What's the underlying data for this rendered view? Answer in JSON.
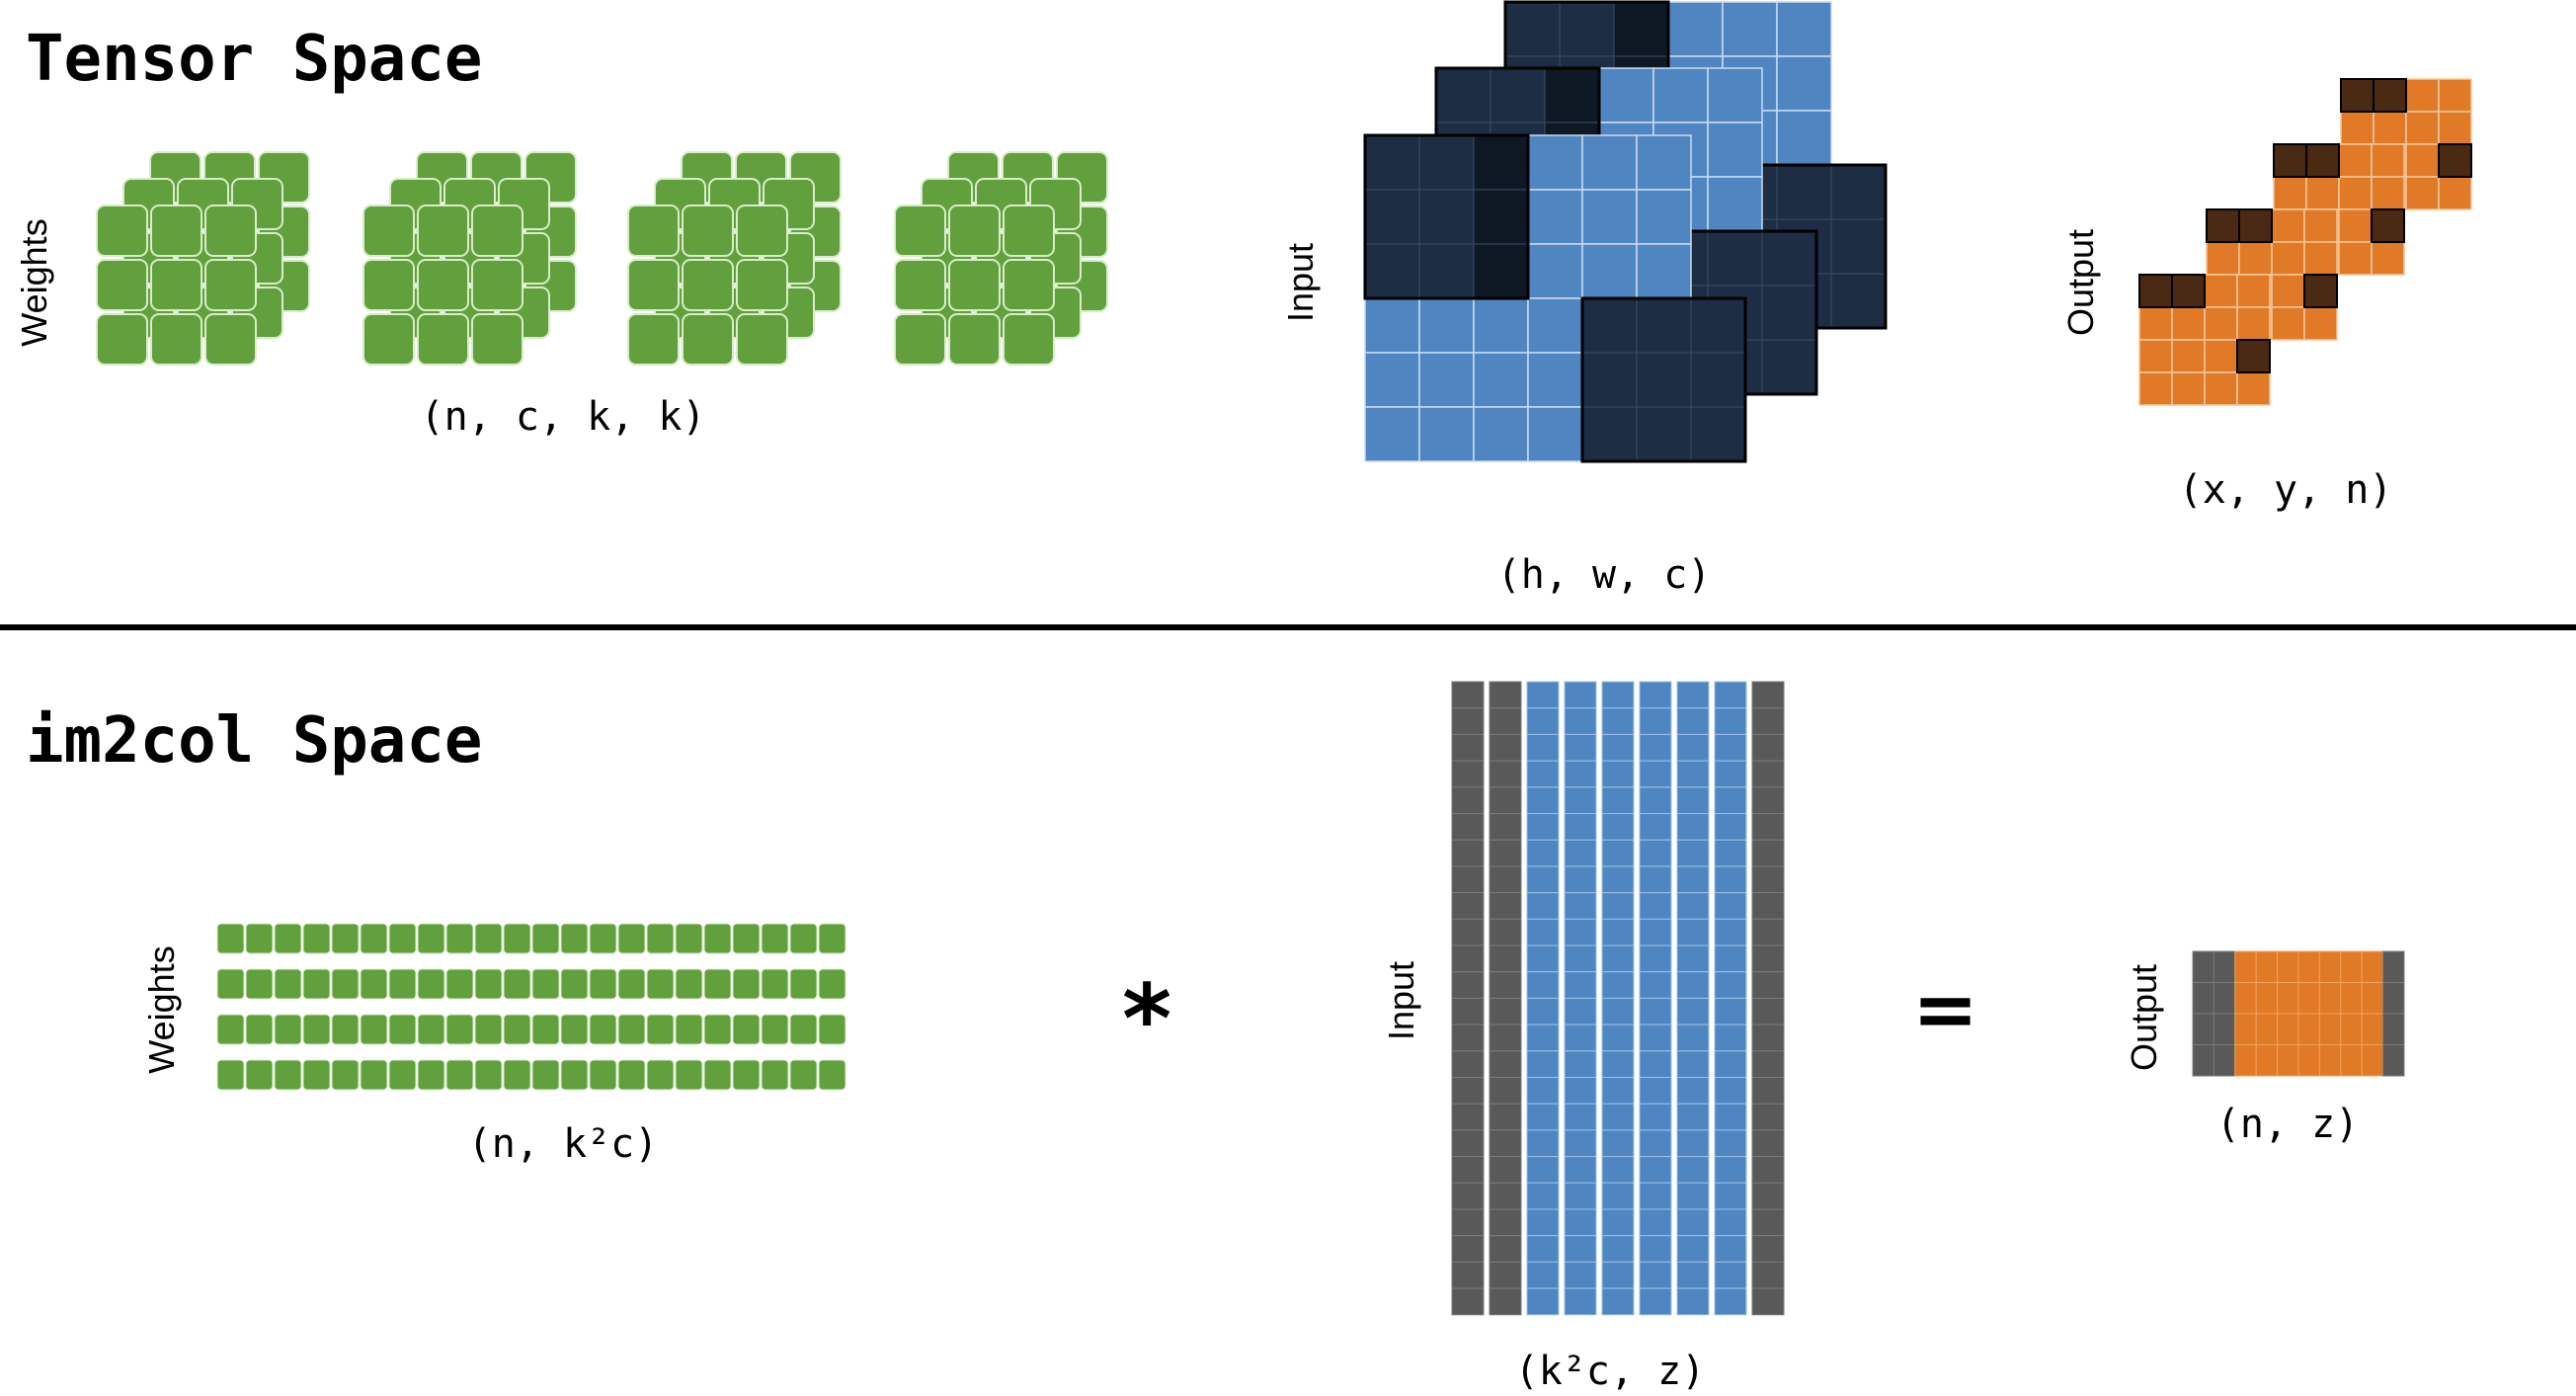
{
  "sections": {
    "tensor_title": "Tensor Space",
    "im2col_title": "im2col Space"
  },
  "tensor_space": {
    "weights_label": "Weights",
    "weights_shape": "(n, c, k, k)",
    "input_label": "Input",
    "input_shape": "(h, w, c)",
    "output_label": "Output",
    "output_shape": "(x, y, n)"
  },
  "im2col_space": {
    "weights_label": "Weights",
    "weights_shape": "(n, k²c)",
    "multiply_symbol": "*",
    "input_label": "Input",
    "input_shape": "(k²c, z)",
    "equals_symbol": "=",
    "output_label": "Output",
    "output_shape": "(n, z)"
  },
  "colors": {
    "weight_green": "#62a03d",
    "input_blue": "#4f86c2",
    "input_dark": "#1d2d44",
    "output_orange": "#e07a26",
    "output_brown": "#4a2a12",
    "column_gray": "#595959"
  }
}
